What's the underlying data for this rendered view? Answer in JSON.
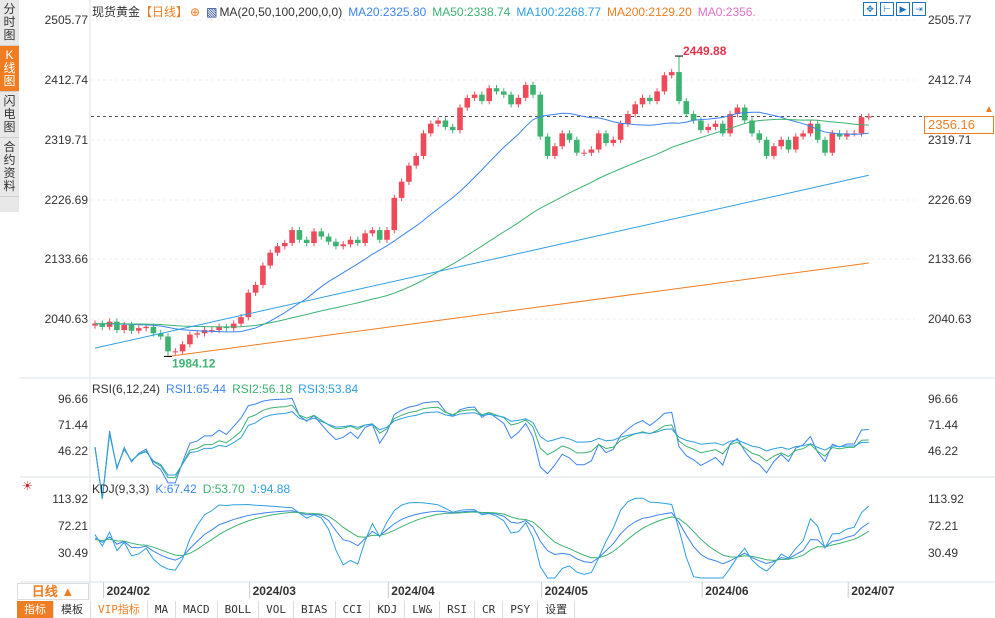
{
  "side_tabs": [
    "分时图",
    "K线图",
    "闪电图",
    "合约资料"
  ],
  "header": {
    "instrument": "现货黄金",
    "period": "【日线】",
    "ma_params": "MA(20,50,100,200,0,0)",
    "ma20": "MA20:2325.80",
    "ma50": "MA50:2338.74",
    "ma100": "MA100:2268.77",
    "ma200": "MA200:2129.20",
    "ma0": "MA0:2356."
  },
  "colors": {
    "up": "#ee4a5a",
    "down": "#3cb371",
    "ma20": "#3d84f0",
    "ma50": "#3cb371",
    "ma100": "#2f9fe0",
    "ma200": "#f07d22",
    "accent": "#f07d22"
  },
  "price_axis": [
    "2505.77",
    "2412.74",
    "2319.71",
    "2226.69",
    "2133.66",
    "2040.63"
  ],
  "last_price": "2356.16",
  "high_label": "2449.88",
  "low_label": "1984.12",
  "rsi": {
    "params": "RSI(6,12,24)",
    "rsi1": "RSI1:65.44",
    "rsi2": "RSI2:56.18",
    "rsi3": "RSI3:53.84",
    "axis": [
      "96.66",
      "71.44",
      "46.22"
    ]
  },
  "kdj": {
    "params": "KDJ(9,3,3)",
    "k": "K:67.42",
    "d": "D:53.70",
    "j": "J:94.88",
    "axis": [
      "113.92",
      "72.21",
      "30.49"
    ]
  },
  "dates": [
    {
      "label": "2024/02",
      "index": 2
    },
    {
      "label": "2024/03",
      "index": 22
    },
    {
      "label": "2024/04",
      "index": 41
    },
    {
      "label": "2024/05",
      "index": 62
    },
    {
      "label": "2024/06",
      "index": 84
    },
    {
      "label": "2024/07",
      "index": 104
    }
  ],
  "period_selector": "日线 ▲",
  "toolbar": [
    "指标",
    "模板",
    "VIP指标",
    "MA",
    "MACD",
    "BOLL",
    "VOL",
    "BIAS",
    "CCI",
    "KDJ",
    "LW&",
    "RSI",
    "CR",
    "PSY",
    "设置"
  ],
  "chart_data": {
    "type": "candlestick",
    "price_range": [
      1955,
      2505.77
    ],
    "closes": [
      2035,
      2030,
      2038,
      2025,
      2033,
      2024,
      2028,
      2030,
      2020,
      2015,
      1992,
      1992,
      2003,
      2018,
      2020,
      2025,
      2025,
      2030,
      2028,
      2035,
      2045,
      2083,
      2095,
      2125,
      2145,
      2155,
      2160,
      2180,
      2165,
      2160,
      2178,
      2170,
      2162,
      2155,
      2158,
      2165,
      2160,
      2175,
      2180,
      2165,
      2180,
      2230,
      2255,
      2280,
      2295,
      2330,
      2345,
      2350,
      2340,
      2335,
      2370,
      2385,
      2390,
      2380,
      2400,
      2395,
      2390,
      2375,
      2385,
      2405,
      2390,
      2325,
      2295,
      2310,
      2330,
      2320,
      2300,
      2300,
      2305,
      2330,
      2315,
      2320,
      2345,
      2360,
      2375,
      2385,
      2380,
      2395,
      2420,
      2425,
      2380,
      2360,
      2350,
      2335,
      2340,
      2345,
      2330,
      2360,
      2370,
      2350,
      2330,
      2320,
      2295,
      2310,
      2320,
      2305,
      2325,
      2330,
      2345,
      2320,
      2300,
      2330,
      2325,
      2330,
      2330,
      2355,
      2356.16
    ],
    "wick": 5,
    "ma100": [
      1997,
      2265
    ],
    "ma200": [
      1984,
      2129
    ]
  }
}
